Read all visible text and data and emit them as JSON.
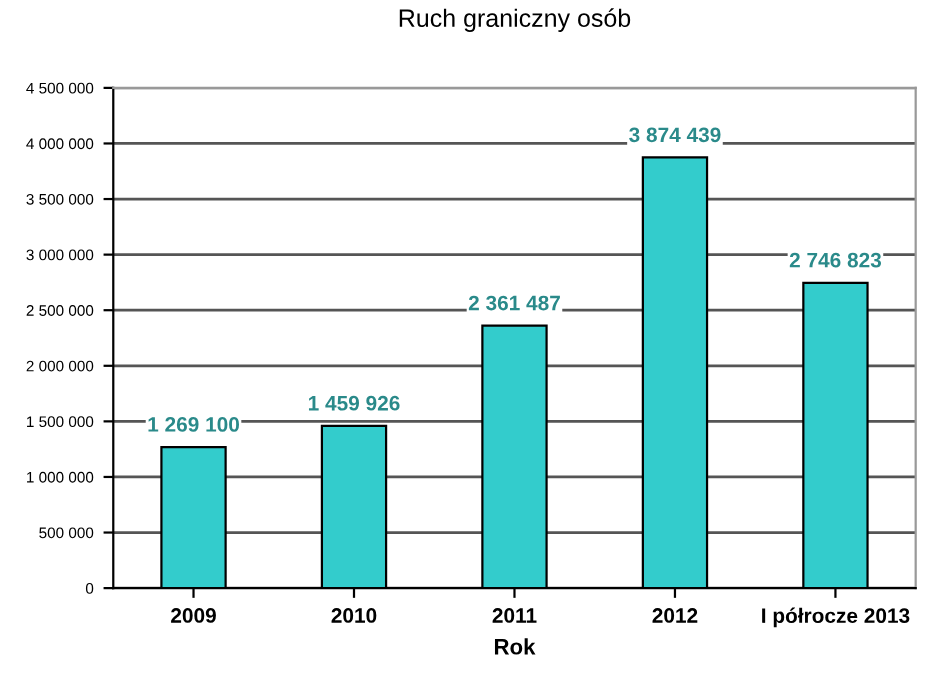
{
  "chart_data": {
    "type": "bar",
    "title": "Ruch graniczny osób",
    "xlabel": "Rok",
    "categories": [
      "2009",
      "2010",
      "2011",
      "2012",
      "I półrocze 2013"
    ],
    "values": [
      1269100,
      1459926,
      2361487,
      3874439,
      2746823
    ],
    "value_labels": [
      "1 269 100",
      "1 459 926",
      "2 361 487",
      "3 874 439",
      "2 746 823"
    ],
    "color": "#33cccc",
    "ylim": [
      0,
      4500000
    ],
    "yticks": [
      0,
      {
        "value": 500000,
        "label": "500 000"
      },
      {
        "value": 1000000,
        "label": "1 000 000"
      },
      {
        "value": 1500000,
        "label": "1 500 000"
      },
      {
        "value": 2000000,
        "label": "2 000 000"
      },
      {
        "value": 2500000,
        "label": "2 500 000"
      },
      {
        "value": 3000000,
        "label": "3 000 000"
      },
      {
        "value": 3500000,
        "label": "3 500 000"
      },
      {
        "value": 4000000,
        "label": "4 000 000"
      },
      {
        "value": 4500000,
        "label": "4 500 000"
      }
    ],
    "grid": "y"
  }
}
